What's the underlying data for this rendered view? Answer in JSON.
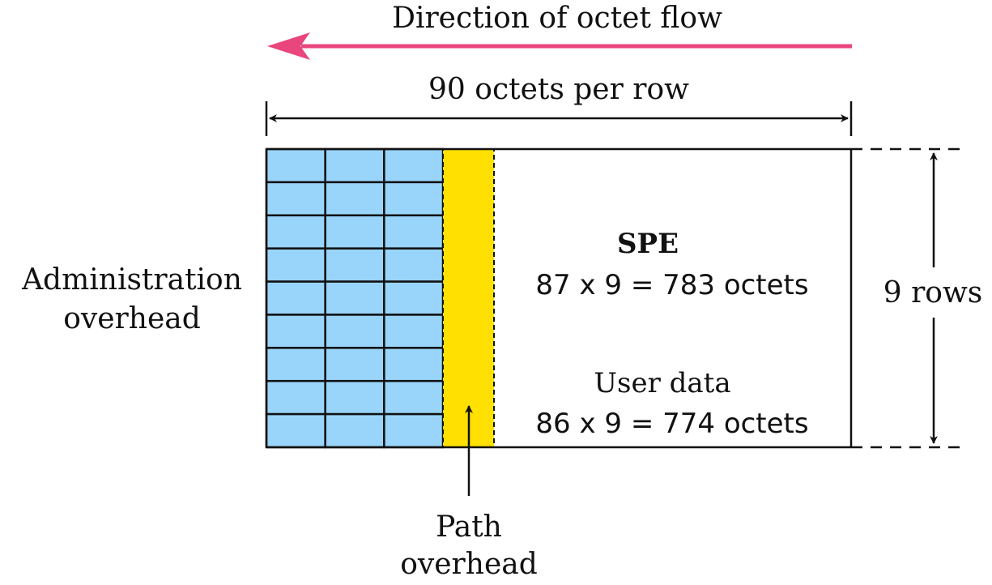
{
  "labels": {
    "flow_direction": "Direction of octet flow",
    "row_width": "90 octets per row",
    "admin_line1": "Administration",
    "admin_line2": "overhead",
    "spe_title": "SPE",
    "spe_formula": "87 x 9 = 783 octets",
    "user_title": "User data",
    "user_formula": "86 x 9 = 774 octets",
    "rows": "9 rows",
    "path_line1": "Path",
    "path_line2": "overhead"
  },
  "frame": {
    "rows": 9,
    "overhead_columns": 3
  },
  "colors": {
    "flow_arrow": "#e8467c",
    "overhead_cell": "#99d4fb",
    "path_overhead": "#ffe000",
    "lines": "#111111"
  }
}
